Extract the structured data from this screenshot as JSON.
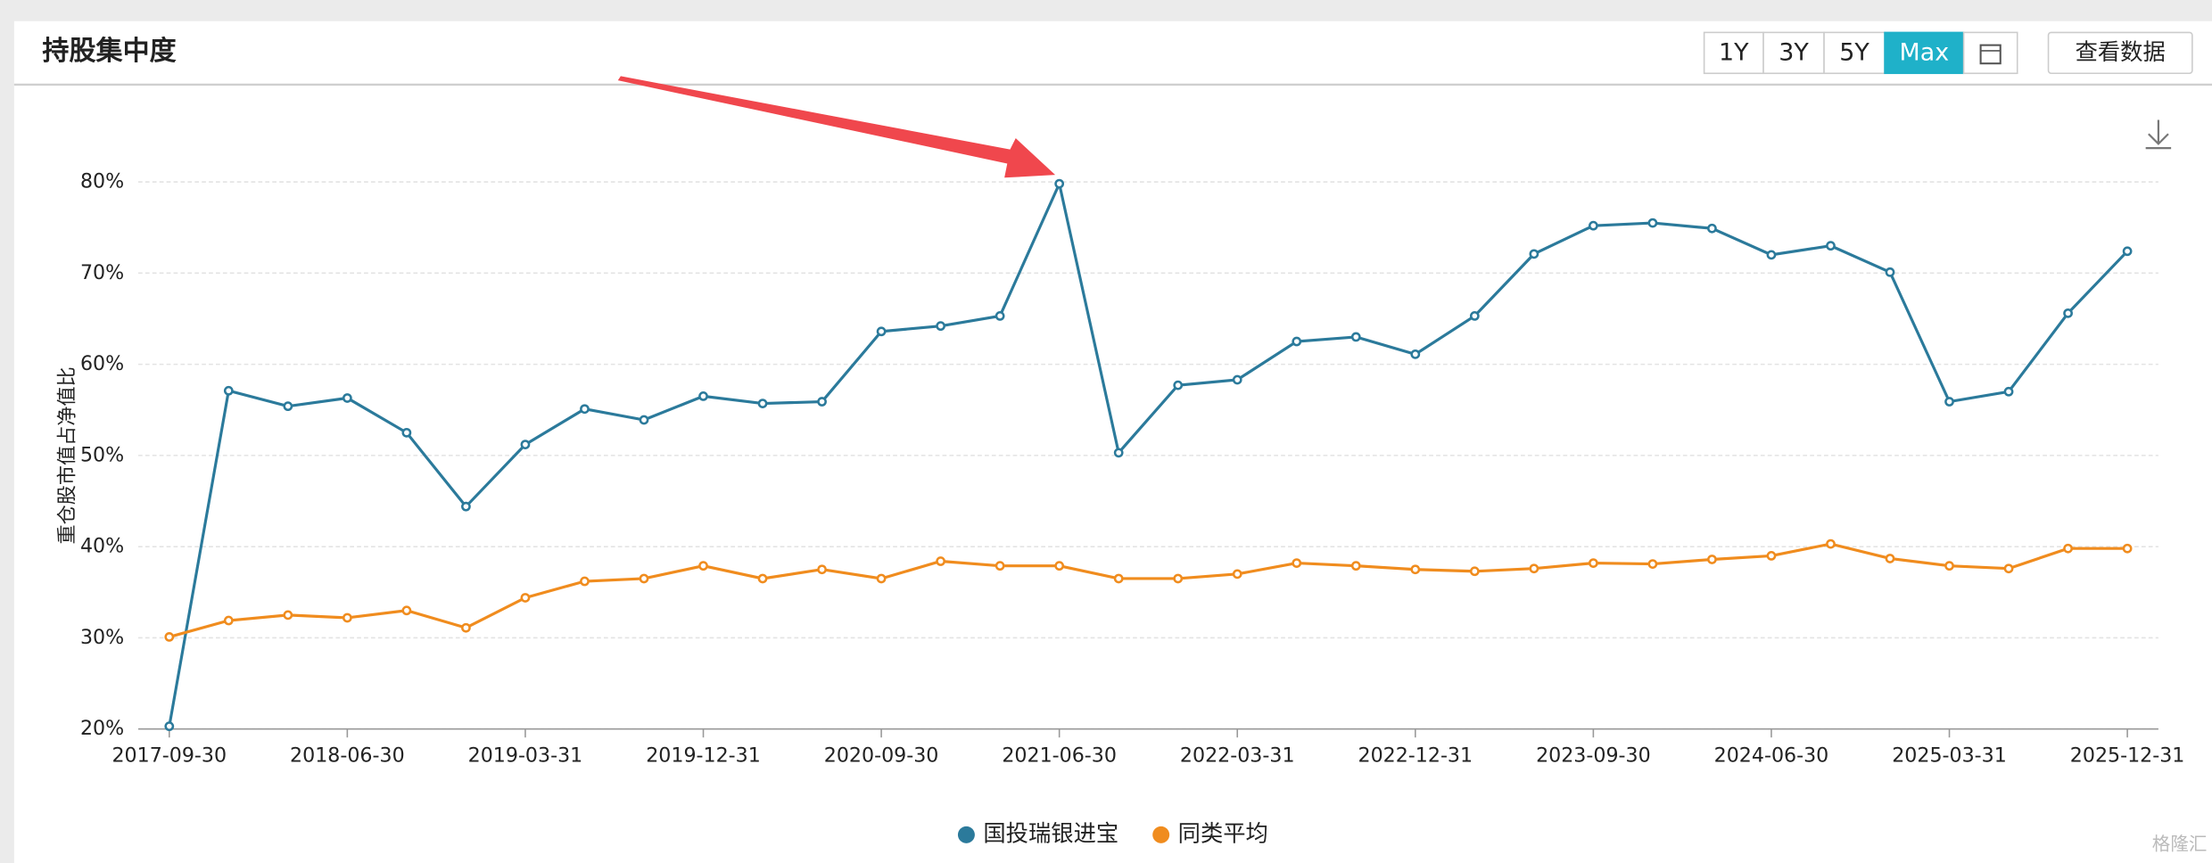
{
  "chart_data": {
    "type": "line",
    "title": "持股集中度",
    "y_label": "重仓股市值占净值比",
    "categories": [
      "2017-09-30",
      null,
      null,
      "2018-06-30",
      null,
      null,
      "2019-03-31",
      null,
      null,
      "2019-12-31",
      null,
      null,
      "2020-09-30",
      null,
      null,
      "2021-06-30",
      null,
      null,
      "2022-03-31",
      null,
      null,
      "2022-12-31",
      null,
      null,
      "2023-09-30",
      null,
      null,
      "2024-06-30",
      null,
      null,
      "2025-03-31",
      null,
      null,
      "2025-12-31"
    ],
    "series": [
      {
        "name": "国投瑞银进宝",
        "color": "#2b7a9b",
        "values": [
          20.3,
          57.1,
          55.4,
          56.3,
          52.5,
          44.4,
          51.2,
          55.1,
          53.9,
          56.5,
          55.7,
          55.9,
          63.6,
          64.2,
          65.3,
          79.8,
          50.3,
          57.7,
          58.3,
          62.5,
          63.0,
          61.1,
          65.3,
          72.1,
          75.2,
          75.5,
          74.9,
          72.0,
          73.0,
          70.1,
          55.9,
          57.0,
          65.6,
          72.4
        ]
      },
      {
        "name": "同类平均",
        "color": "#f08c1e",
        "values": [
          30.1,
          31.9,
          32.5,
          32.2,
          33.0,
          31.1,
          34.4,
          36.2,
          36.5,
          37.9,
          36.5,
          37.5,
          36.5,
          38.4,
          37.9,
          37.9,
          36.5,
          36.5,
          37.0,
          38.2,
          37.9,
          37.5,
          37.3,
          37.6,
          38.2,
          38.1,
          38.6,
          39.0,
          40.3,
          38.7,
          37.9,
          37.6,
          39.8,
          39.8
        ]
      }
    ],
    "ylim": [
      20,
      80
    ],
    "yticks": [
      {
        "value": 20,
        "label": "20%"
      },
      {
        "value": 30,
        "label": "30%"
      },
      {
        "value": 40,
        "label": "40%"
      },
      {
        "value": 50,
        "label": "50%"
      },
      {
        "value": 60,
        "label": "60%"
      },
      {
        "value": 70,
        "label": "70%"
      },
      {
        "value": 80,
        "label": "80%"
      }
    ],
    "grid": true,
    "legend": "bottom"
  },
  "controls": {
    "ranges": [
      "1Y",
      "3Y",
      "5Y",
      "Max"
    ],
    "active_range": "Max",
    "view_data": "查看数据"
  },
  "watermark": "格隆汇"
}
